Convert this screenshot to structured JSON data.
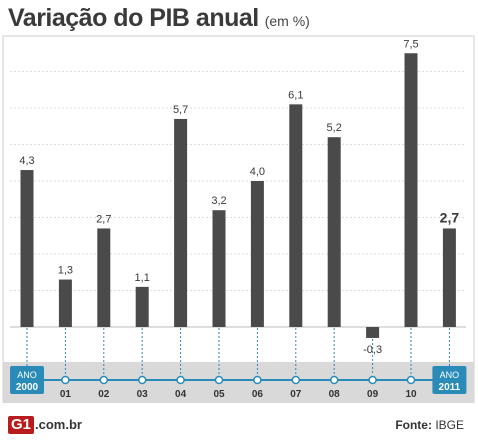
{
  "header": {
    "title": "Variação do PIB anual",
    "subtitle": "(em %)"
  },
  "footer": {
    "logo_mark": "G1",
    "logo_domain": ".com.br",
    "source_label": "Fonte:",
    "source_value": "IBGE"
  },
  "colors": {
    "bar": "#4a4a4a",
    "timeline": "#2a8ab8",
    "band": "#d9d9d9",
    "grid": "#dcdcdc",
    "badge": "#2a8ab8"
  },
  "chart_data": {
    "type": "bar",
    "categories": [
      "ANO 2000",
      "01",
      "02",
      "03",
      "04",
      "05",
      "06",
      "07",
      "08",
      "09",
      "10",
      "ANO 2011"
    ],
    "values": [
      4.3,
      1.3,
      2.7,
      1.1,
      5.7,
      3.2,
      4.0,
      6.1,
      5.2,
      -0.3,
      7.5,
      2.7
    ],
    "data_labels": [
      "4,3",
      "1,3",
      "2,7",
      "1,1",
      "5,7",
      "3,2",
      "4,0",
      "6,1",
      "5,2",
      "-0,3",
      "7,5",
      "2,7"
    ],
    "ylim": [
      -0.5,
      8
    ],
    "grid": true,
    "title": "Variação do PIB anual",
    "subtitle": "(em %)",
    "xlabel": "",
    "ylabel": ""
  }
}
